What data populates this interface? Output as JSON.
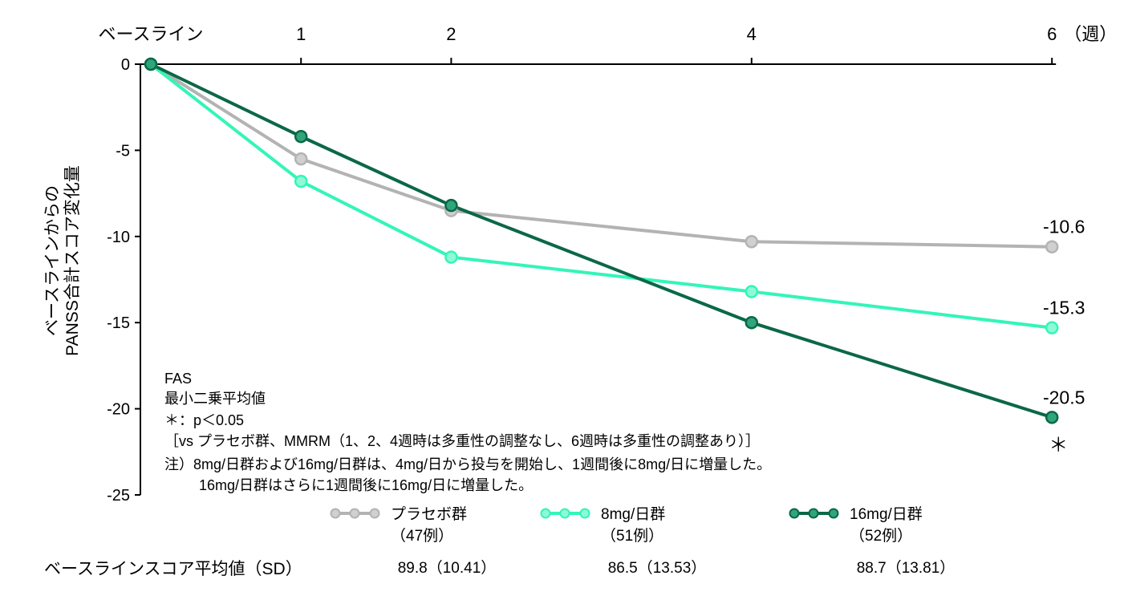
{
  "chart_data": {
    "type": "line",
    "x_categories": [
      "ベースライン",
      "1",
      "2",
      "4",
      "6"
    ],
    "x": [
      0,
      1,
      2,
      4,
      6
    ],
    "x_unit": "（週）",
    "ylabel_line1": "ベースラインからの",
    "ylabel_line2": "PANSS合計スコア変化量",
    "ylim": [
      -25,
      0
    ],
    "yticks": [
      0,
      -5,
      -10,
      -15,
      -20,
      -25
    ],
    "ytick_labels": [
      "0",
      "-5",
      "-10",
      "-15",
      "-20",
      "-25"
    ],
    "grid": false,
    "legend_placement": "bottom",
    "series": [
      {
        "name": "プラセボ群",
        "n": "（47例）",
        "color": "#b3b3b3",
        "marker_fill": "#d0d0d0",
        "values": [
          0,
          -5.5,
          -8.5,
          -10.3,
          -10.6
        ],
        "end_label": "-10.6",
        "baseline_score": "89.8（10.41）"
      },
      {
        "name": "8mg/日群",
        "n": "（51例）",
        "color": "#33f5b8",
        "marker_fill": "#8ff9d5",
        "values": [
          0,
          -6.8,
          -11.2,
          -13.2,
          -15.3
        ],
        "end_label": "-15.3",
        "baseline_score": "86.5（13.53）"
      },
      {
        "name": "16mg/日群",
        "n": "（52例）",
        "color": "#0b6847",
        "marker_fill": "#2fa57a",
        "values": [
          0,
          -4.2,
          -8.2,
          -15.0,
          -20.5
        ],
        "end_label": "-20.5",
        "baseline_score": "88.7（13.81）"
      }
    ],
    "significance_marker": "＊",
    "annotations": [
      "FAS",
      "最小二乗平均値",
      "＊：p＜0.05",
      "［vs プラセボ群、MMRM（1、2、4週時は多重性の調整なし、6週時は多重性の調整あり）］",
      "注）8mg/日群および16mg/日群は、4mg/日から投与を開始し、1週間後に8mg/日に増量した。",
      "16mg/日群はさらに1週間後に16mg/日に増量した。"
    ],
    "baseline_row_label": "ベースラインスコア平均値（SD）"
  }
}
